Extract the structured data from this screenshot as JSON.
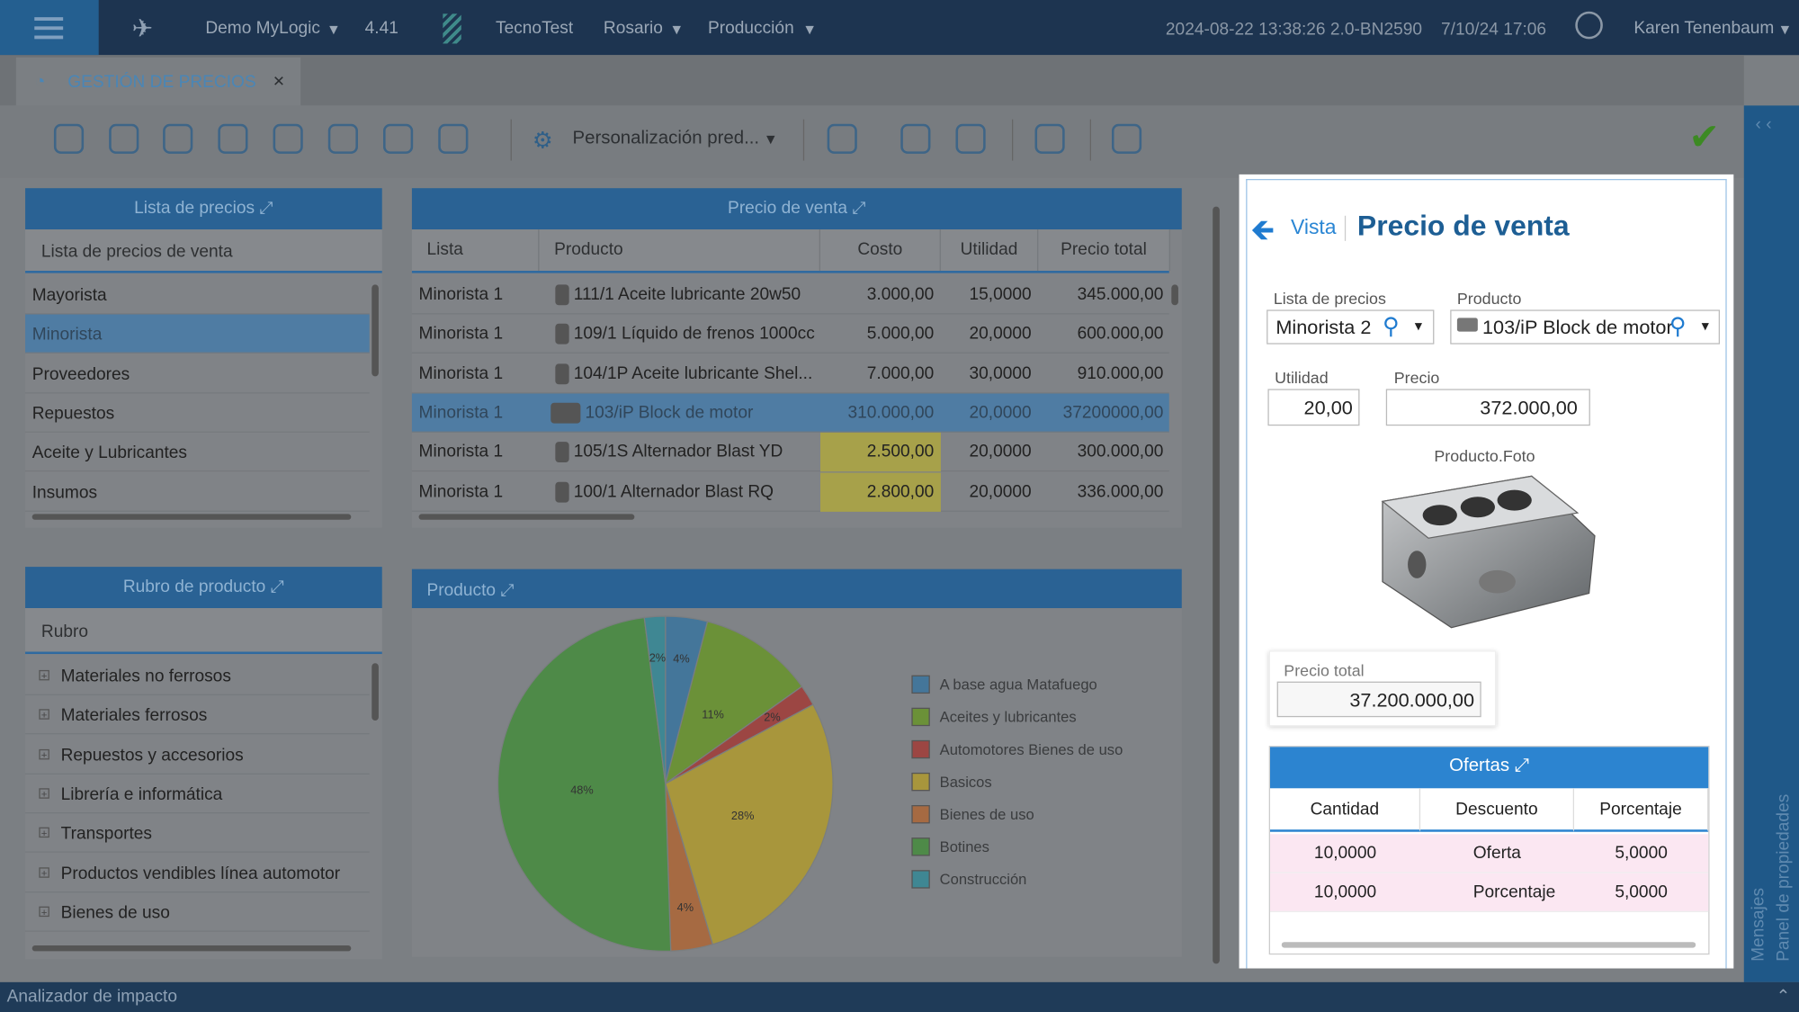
{
  "topbar": {
    "company": "Demo MyLogic",
    "version": "4.41",
    "org": "TecnoTest",
    "branch": "Rosario",
    "module": "Producción",
    "build": "2024-08-22 13:38:26 2.0-BN2590",
    "datetime": "7/10/24 17:06",
    "user": "Karen Tenenbaum"
  },
  "tab": {
    "title": "GESTIÓN DE PRECIOS",
    "close": "×"
  },
  "toolbar": {
    "customization": "Personalización pred..."
  },
  "price_lists": {
    "title": "Lista de precios",
    "column": "Lista de precios de venta",
    "rows": [
      "Mayorista",
      "Minorista",
      "Proveedores",
      "Repuestos",
      "Aceite y Lubricantes",
      "Insumos"
    ]
  },
  "sale_prices": {
    "title": "Precio de venta",
    "columns": [
      "Lista",
      "Producto",
      "Costo",
      "Utilidad",
      "Precio total"
    ],
    "rows": [
      [
        "Minorista 1",
        "111/1 Aceite lubricante 20w50",
        "3.000,00",
        "15,0000",
        "345.000,00"
      ],
      [
        "Minorista 1",
        "109/1 Líquido de frenos 1000cc",
        "5.000,00",
        "20,0000",
        "600.000,00"
      ],
      [
        "Minorista 1",
        "104/1P Aceite lubricante Shel...",
        "7.000,00",
        "30,0000",
        "910.000,00"
      ],
      [
        "Minorista 1",
        "103/iP Block de motor",
        "310.000,00",
        "20,0000",
        "37200000,00"
      ],
      [
        "Minorista 1",
        "105/1S Alternador Blast YD",
        "2.500,00",
        "20,0000",
        "300.000,00"
      ],
      [
        "Minorista 1",
        "100/1 Alternador Blast RQ",
        "2.800,00",
        "20,0000",
        "336.000,00"
      ]
    ]
  },
  "categories": {
    "title": "Rubro de producto",
    "column": "Rubro",
    "rows": [
      "Materiales no ferrosos",
      "Materiales ferrosos",
      "Repuestos y accesorios",
      "Librería e informática",
      "Transportes",
      "Productos vendibles línea automotor",
      "Bienes de uso"
    ]
  },
  "product_chart": {
    "title": "Producto",
    "type": "pie",
    "labels": [
      "A base agua Matafuego",
      "Aceites y lubricantes",
      "Automotores Bienes de uso",
      "Basicos",
      "Bienes de uso",
      "Botines",
      "Construcción"
    ],
    "values": [
      4,
      11,
      2,
      28,
      4,
      48,
      2
    ],
    "value_labels": [
      "4%",
      "11%",
      "2%",
      "28%",
      "4%",
      "48%",
      "2%"
    ],
    "colors": [
      "#44769a",
      "#6b9138",
      "#9c4643",
      "#a8963c",
      "#a66a42",
      "#4e8a48",
      "#3f8793"
    ]
  },
  "detail": {
    "back": "Vista",
    "title": "Precio de venta",
    "price_list_label": "Lista de precios",
    "price_list": "Minorista 2",
    "product_label": "Producto",
    "product": "103/iP Block de motor",
    "utility_label": "Utilidad",
    "utility": "20,00",
    "price_label": "Precio",
    "price": "372.000,00",
    "photo_label": "Producto.Foto",
    "total_label": "Precio total",
    "total": "37.200.000,00",
    "offers": {
      "title": "Ofertas",
      "columns": [
        "Cantidad",
        "Descuento",
        "Porcentaje"
      ],
      "rows": [
        [
          "10,0000",
          "Oferta",
          "5,0000"
        ],
        [
          "10,0000",
          "Porcentaje",
          "5,0000"
        ]
      ]
    }
  },
  "side": {
    "messages": "Mensajes",
    "properties": "Panel de propiedades"
  },
  "footer": "Analizador de impacto"
}
